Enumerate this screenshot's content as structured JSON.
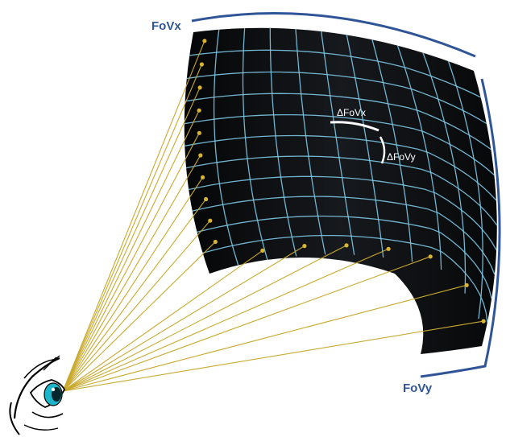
{
  "labels": {
    "fovx": "FoVx",
    "fovy": "FoVy",
    "delta_fovx": "ΔFoVx",
    "delta_fovy": "ΔFoVy"
  },
  "colors": {
    "surface": "#0b0d10",
    "grid": "#7ec8e6",
    "rays": "#c9a92e",
    "ray_dots": "#d9b431",
    "arc": "#2f5597",
    "eye_iris": "#1bb5c9"
  },
  "icons": {
    "eye": "eye-icon"
  },
  "grid": {
    "rows": 11,
    "cols": 11
  }
}
